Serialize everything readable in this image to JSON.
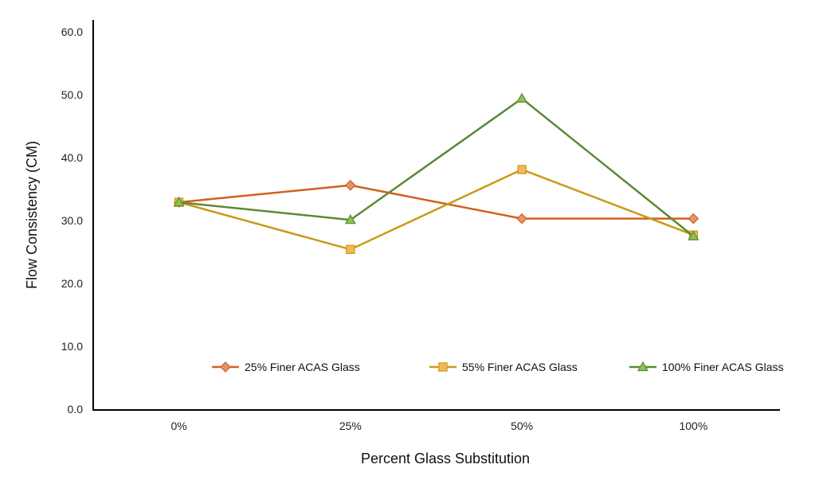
{
  "chart_data": {
    "type": "line",
    "title": "",
    "xlabel": "Percent Glass Substitution",
    "ylabel": "Flow Consistency (CM)",
    "categories": [
      "0%",
      "25%",
      "50%",
      "100%"
    ],
    "ylim": [
      0,
      60
    ],
    "yticks": [
      "0.0",
      "10.0",
      "20.0",
      "30.0",
      "40.0",
      "50.0",
      "60.0"
    ],
    "ytick_values": [
      0,
      10,
      20,
      30,
      40,
      50,
      60
    ],
    "grid": false,
    "legend_position": "bottom-inside",
    "series": [
      {
        "name": "25% Finer ACAS Glass",
        "values": [
          32.9,
          35.6,
          30.3,
          30.3
        ],
        "color": "#d2601e",
        "fill": "#e0956b",
        "marker": "diamond"
      },
      {
        "name": "55% Finer ACAS Glass",
        "values": [
          32.9,
          25.4,
          38.1,
          27.7
        ],
        "color": "#c99a14",
        "fill": "#f5b759",
        "marker": "square"
      },
      {
        "name": "100% Finer ACAS Glass",
        "values": [
          32.9,
          30.1,
          49.4,
          27.5
        ],
        "color": "#5b8a35",
        "fill": "#8cc152",
        "marker": "triangle"
      }
    ]
  }
}
